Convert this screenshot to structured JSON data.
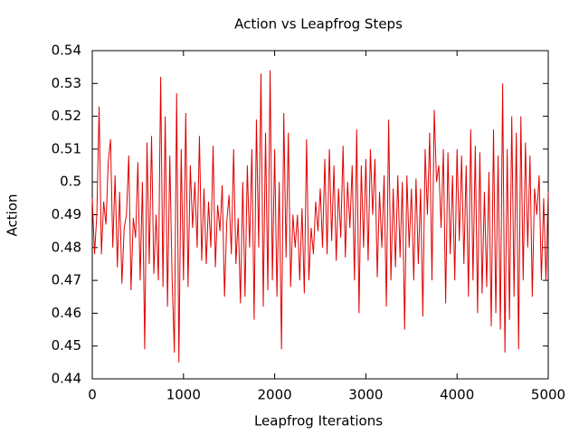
{
  "chart_data": {
    "type": "line",
    "title": "Action vs Leapfrog Steps",
    "xlabel": "Leapfrog Iterations",
    "ylabel": "Action",
    "color": "#e00000",
    "x": [
      0,
      25,
      50,
      75,
      100,
      125,
      150,
      175,
      200,
      225,
      250,
      275,
      300,
      325,
      350,
      375,
      400,
      425,
      450,
      475,
      500,
      525,
      550,
      575,
      600,
      625,
      650,
      675,
      700,
      725,
      750,
      775,
      800,
      825,
      850,
      875,
      900,
      925,
      950,
      975,
      1000,
      1025,
      1050,
      1075,
      1100,
      1125,
      1150,
      1175,
      1200,
      1225,
      1250,
      1275,
      1300,
      1325,
      1350,
      1375,
      1400,
      1425,
      1450,
      1475,
      1500,
      1525,
      1550,
      1575,
      1600,
      1625,
      1650,
      1675,
      1700,
      1725,
      1750,
      1775,
      1800,
      1825,
      1850,
      1875,
      1900,
      1925,
      1950,
      1975,
      2000,
      2025,
      2050,
      2075,
      2100,
      2125,
      2150,
      2175,
      2200,
      2225,
      2250,
      2275,
      2300,
      2325,
      2350,
      2375,
      2400,
      2425,
      2450,
      2475,
      2500,
      2525,
      2550,
      2575,
      2600,
      2625,
      2650,
      2675,
      2700,
      2725,
      2750,
      2775,
      2800,
      2825,
      2850,
      2875,
      2900,
      2925,
      2950,
      2975,
      3000,
      3025,
      3050,
      3075,
      3100,
      3125,
      3150,
      3175,
      3200,
      3225,
      3250,
      3275,
      3300,
      3325,
      3350,
      3375,
      3400,
      3425,
      3450,
      3475,
      3500,
      3525,
      3550,
      3575,
      3600,
      3625,
      3650,
      3675,
      3700,
      3725,
      3750,
      3775,
      3800,
      3825,
      3850,
      3875,
      3900,
      3925,
      3950,
      3975,
      4000,
      4025,
      4050,
      4075,
      4100,
      4125,
      4150,
      4175,
      4200,
      4225,
      4250,
      4275,
      4300,
      4325,
      4350,
      4375,
      4400,
      4425,
      4450,
      4475,
      4500,
      4525,
      4550,
      4575,
      4600,
      4625,
      4650,
      4675,
      4700,
      4725,
      4750,
      4775,
      4800,
      4825,
      4850,
      4875,
      4900,
      4925,
      4950,
      4975,
      5000
    ],
    "values": [
      0.495,
      0.478,
      0.49,
      0.523,
      0.478,
      0.494,
      0.487,
      0.506,
      0.513,
      0.48,
      0.502,
      0.474,
      0.497,
      0.469,
      0.486,
      0.49,
      0.508,
      0.467,
      0.489,
      0.483,
      0.506,
      0.47,
      0.5,
      0.449,
      0.512,
      0.475,
      0.514,
      0.472,
      0.49,
      0.47,
      0.532,
      0.468,
      0.52,
      0.462,
      0.508,
      0.471,
      0.448,
      0.527,
      0.445,
      0.51,
      0.47,
      0.521,
      0.468,
      0.505,
      0.486,
      0.5,
      0.48,
      0.514,
      0.476,
      0.498,
      0.475,
      0.494,
      0.48,
      0.511,
      0.474,
      0.493,
      0.485,
      0.499,
      0.465,
      0.488,
      0.496,
      0.478,
      0.51,
      0.475,
      0.489,
      0.463,
      0.5,
      0.465,
      0.505,
      0.48,
      0.51,
      0.458,
      0.519,
      0.48,
      0.533,
      0.462,
      0.515,
      0.467,
      0.534,
      0.47,
      0.51,
      0.465,
      0.5,
      0.449,
      0.521,
      0.477,
      0.515,
      0.468,
      0.49,
      0.48,
      0.49,
      0.47,
      0.492,
      0.466,
      0.513,
      0.47,
      0.486,
      0.478,
      0.494,
      0.485,
      0.498,
      0.48,
      0.507,
      0.478,
      0.51,
      0.482,
      0.505,
      0.476,
      0.498,
      0.483,
      0.511,
      0.477,
      0.5,
      0.486,
      0.505,
      0.47,
      0.516,
      0.46,
      0.505,
      0.48,
      0.507,
      0.476,
      0.51,
      0.49,
      0.507,
      0.471,
      0.497,
      0.48,
      0.502,
      0.462,
      0.519,
      0.47,
      0.498,
      0.474,
      0.502,
      0.477,
      0.5,
      0.455,
      0.502,
      0.48,
      0.498,
      0.47,
      0.501,
      0.475,
      0.498,
      0.459,
      0.51,
      0.49,
      0.515,
      0.47,
      0.522,
      0.5,
      0.505,
      0.486,
      0.51,
      0.463,
      0.509,
      0.478,
      0.502,
      0.47,
      0.51,
      0.482,
      0.508,
      0.475,
      0.505,
      0.465,
      0.516,
      0.47,
      0.511,
      0.46,
      0.509,
      0.466,
      0.497,
      0.468,
      0.503,
      0.456,
      0.516,
      0.46,
      0.508,
      0.455,
      0.53,
      0.448,
      0.51,
      0.458,
      0.52,
      0.465,
      0.515,
      0.449,
      0.52,
      0.47,
      0.512,
      0.48,
      0.508,
      0.465,
      0.498,
      0.49,
      0.502,
      0.47,
      0.495,
      0.47,
      0.497
    ],
    "xlim": [
      0,
      5000
    ],
    "xticks": [
      0,
      1000,
      2000,
      3000,
      4000,
      5000
    ],
    "ylim": [
      0.44,
      0.54
    ],
    "yticks": [
      0.44,
      0.45,
      0.46,
      0.47,
      0.48,
      0.49,
      0.5,
      0.51,
      0.52,
      0.53,
      0.54
    ]
  }
}
